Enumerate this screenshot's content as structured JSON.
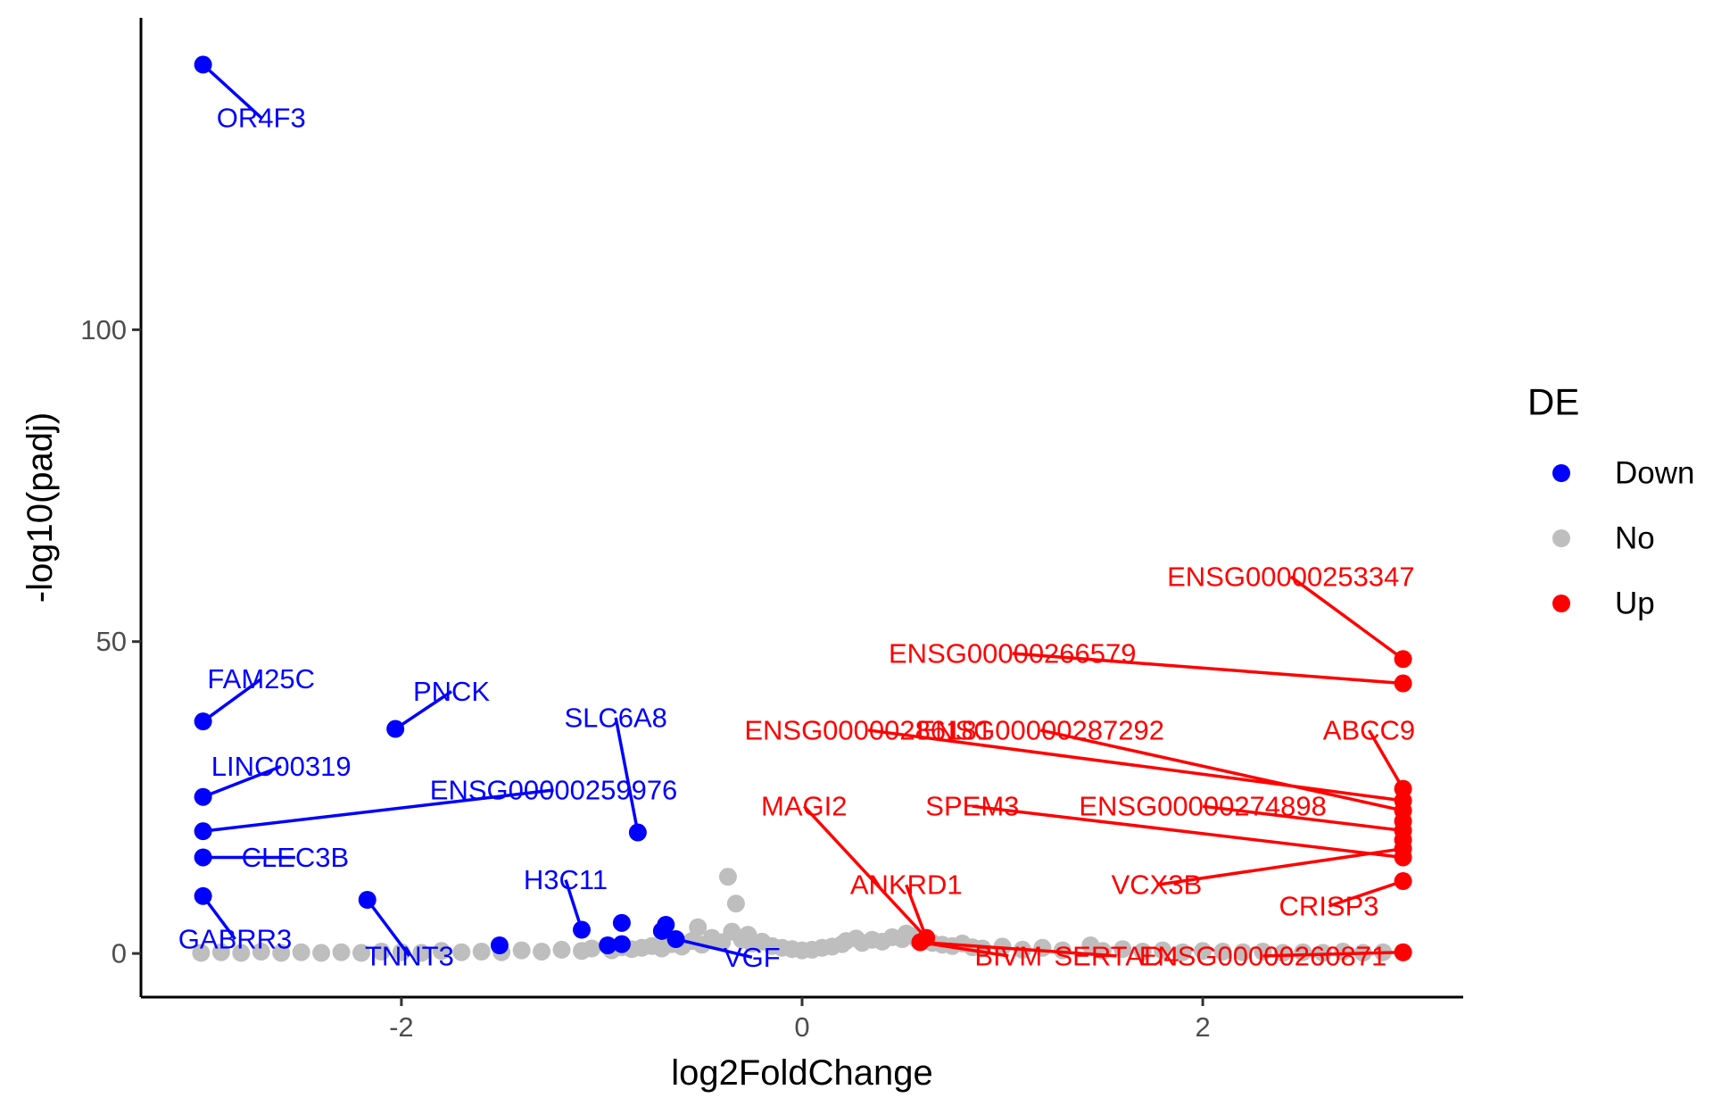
{
  "chart_data": {
    "type": "scatter",
    "title": "",
    "xlabel": "log2FoldChange",
    "ylabel": "-log10(padj)",
    "xlim": [
      -3.3,
      3.3
    ],
    "ylim": [
      -7,
      150
    ],
    "x_ticks": [
      -2,
      0,
      2
    ],
    "x_tick_labels": [
      "-2",
      "0",
      "2"
    ],
    "y_ticks": [
      0,
      50,
      100
    ],
    "y_tick_labels": [
      "0",
      "50",
      "100"
    ],
    "grid": false,
    "legend": {
      "title": "DE",
      "placement": "right",
      "entries": [
        {
          "label": "Down",
          "color": "#0000ff"
        },
        {
          "label": "No",
          "color": "#bebebe"
        },
        {
          "label": "Up",
          "color": "#ff0000"
        }
      ]
    },
    "colors": {
      "Down": "#0000ff",
      "No": "#bebebe",
      "Up": "#ff0000"
    },
    "series": [
      {
        "name": "No",
        "points": [
          [
            -3.0,
            0.1
          ],
          [
            -2.9,
            0.2
          ],
          [
            -2.8,
            0.1
          ],
          [
            -2.7,
            0.3
          ],
          [
            -2.6,
            0.1
          ],
          [
            -2.5,
            0.2
          ],
          [
            -2.4,
            0.1
          ],
          [
            -2.3,
            0.2
          ],
          [
            -2.2,
            0.1
          ],
          [
            -2.1,
            0.3
          ],
          [
            -2.0,
            0.2
          ],
          [
            -1.9,
            0.1
          ],
          [
            -1.8,
            0.4
          ],
          [
            -1.7,
            0.2
          ],
          [
            -1.6,
            0.3
          ],
          [
            -1.5,
            0.2
          ],
          [
            -1.4,
            0.5
          ],
          [
            -1.3,
            0.3
          ],
          [
            -1.2,
            0.6
          ],
          [
            -1.1,
            0.4
          ],
          [
            -1.05,
            0.8
          ],
          [
            -0.95,
            0.5
          ],
          [
            -0.9,
            1.0
          ],
          [
            -0.85,
            0.7
          ],
          [
            -0.8,
            0.9
          ],
          [
            -0.75,
            1.2
          ],
          [
            -0.7,
            0.8
          ],
          [
            -0.65,
            1.5
          ],
          [
            -0.6,
            1.1
          ],
          [
            -0.55,
            2.0
          ],
          [
            -0.52,
            4.2
          ],
          [
            -0.5,
            1.4
          ],
          [
            -0.45,
            2.5
          ],
          [
            -0.4,
            1.8
          ],
          [
            -0.37,
            12.3
          ],
          [
            -0.35,
            3.5
          ],
          [
            -0.33,
            8.0
          ],
          [
            -0.3,
            2.2
          ],
          [
            -0.27,
            3.0
          ],
          [
            -0.25,
            1.6
          ],
          [
            -0.2,
            1.9
          ],
          [
            -0.15,
            1.2
          ],
          [
            -0.1,
            0.9
          ],
          [
            -0.05,
            0.7
          ],
          [
            0.0,
            0.5
          ],
          [
            0.05,
            0.6
          ],
          [
            0.1,
            0.9
          ],
          [
            0.15,
            1.1
          ],
          [
            0.2,
            1.5
          ],
          [
            0.22,
            2.0
          ],
          [
            0.27,
            2.4
          ],
          [
            0.3,
            1.7
          ],
          [
            0.35,
            2.2
          ],
          [
            0.4,
            1.9
          ],
          [
            0.45,
            2.6
          ],
          [
            0.5,
            2.3
          ],
          [
            0.52,
            3.2
          ],
          [
            0.55,
            2.8
          ],
          [
            0.58,
            2.0
          ],
          [
            0.65,
            1.7
          ],
          [
            0.7,
            1.4
          ],
          [
            0.75,
            1.2
          ],
          [
            0.8,
            1.6
          ],
          [
            0.85,
            1.0
          ],
          [
            0.9,
            0.8
          ],
          [
            1.0,
            1.1
          ],
          [
            1.1,
            0.6
          ],
          [
            1.2,
            0.9
          ],
          [
            1.3,
            0.5
          ],
          [
            1.44,
            1.3
          ],
          [
            1.5,
            0.4
          ],
          [
            1.6,
            0.7
          ],
          [
            1.7,
            0.3
          ],
          [
            1.8,
            0.5
          ],
          [
            1.9,
            0.2
          ],
          [
            2.0,
            0.4
          ],
          [
            2.1,
            0.3
          ],
          [
            2.2,
            0.2
          ],
          [
            2.3,
            0.3
          ],
          [
            2.4,
            0.1
          ],
          [
            2.5,
            0.2
          ],
          [
            2.6,
            0.1
          ],
          [
            2.7,
            0.3
          ],
          [
            2.8,
            0.1
          ],
          [
            2.9,
            0.2
          ],
          [
            3.0,
            0.1
          ]
        ]
      },
      {
        "name": "Down",
        "points": [
          [
            -2.99,
            142.5
          ],
          [
            -2.99,
            37.2
          ],
          [
            -2.99,
            25.1
          ],
          [
            -2.99,
            19.6
          ],
          [
            -2.99,
            15.4
          ],
          [
            -2.99,
            9.2
          ],
          [
            -2.03,
            36.0
          ],
          [
            -0.82,
            19.4
          ],
          [
            -2.17,
            8.6
          ],
          [
            -1.1,
            3.8
          ],
          [
            -0.9,
            4.9
          ],
          [
            -0.68,
            4.6
          ],
          [
            -0.7,
            3.6
          ],
          [
            -0.9,
            1.5
          ],
          [
            -0.97,
            1.3
          ],
          [
            -1.51,
            1.3
          ],
          [
            -0.63,
            2.3
          ]
        ]
      },
      {
        "name": "Up",
        "points": [
          [
            3.0,
            47.2
          ],
          [
            3.0,
            43.3
          ],
          [
            3.0,
            26.4
          ],
          [
            3.0,
            24.5
          ],
          [
            3.0,
            22.9
          ],
          [
            3.0,
            21.2
          ],
          [
            3.0,
            19.7
          ],
          [
            3.0,
            18.2
          ],
          [
            3.0,
            16.8
          ],
          [
            3.0,
            15.4
          ],
          [
            3.0,
            11.6
          ],
          [
            3.0,
            0.2
          ],
          [
            0.62,
            2.5
          ],
          [
            0.59,
            1.8
          ]
        ]
      }
    ],
    "labels": [
      {
        "text": "OR4F3",
        "group": "Down",
        "point": [
          -2.99,
          142.5
        ],
        "at": [
          -2.7,
          134.0
        ]
      },
      {
        "text": "FAM25C",
        "group": "Down",
        "point": [
          -2.99,
          37.2
        ],
        "at": [
          -2.7,
          44.0
        ]
      },
      {
        "text": "PNCK",
        "group": "Down",
        "point": [
          -2.03,
          36.0
        ],
        "at": [
          -1.75,
          42.0
        ]
      },
      {
        "text": "LINC00319",
        "group": "Down",
        "point": [
          -2.99,
          25.1
        ],
        "at": [
          -2.6,
          30.0
        ]
      },
      {
        "text": "ENSG00000259976",
        "group": "Down",
        "point": [
          -2.99,
          19.6
        ],
        "at": [
          -1.24,
          26.2
        ]
      },
      {
        "text": "SLC6A8",
        "group": "Down",
        "point": [
          -0.82,
          19.4
        ],
        "at": [
          -0.93,
          37.8
        ]
      },
      {
        "text": "CLEC3B",
        "group": "Down",
        "point": [
          -2.99,
          15.4
        ],
        "at": [
          -2.53,
          15.4
        ]
      },
      {
        "text": "H3C11",
        "group": "Down",
        "point": [
          -1.1,
          3.8
        ],
        "at": [
          -1.18,
          11.8
        ]
      },
      {
        "text": "GABRR3",
        "group": "Down",
        "point": [
          -2.99,
          9.2
        ],
        "at": [
          -2.83,
          2.3
        ]
      },
      {
        "text": "TNNT3",
        "group": "Down",
        "point": [
          -2.17,
          8.6
        ],
        "at": [
          -1.96,
          -0.4
        ]
      },
      {
        "text": "VGF",
        "group": "Down",
        "point": [
          -0.63,
          2.3
        ],
        "at": [
          -0.25,
          -0.6
        ]
      },
      {
        "text": "ENSG00000253347",
        "group": "Up",
        "point": [
          3.0,
          47.2
        ],
        "at": [
          2.44,
          60.4
        ]
      },
      {
        "text": "ENSG00000266579",
        "group": "Up",
        "point": [
          3.0,
          43.3
        ],
        "at": [
          1.05,
          48.1
        ]
      },
      {
        "text": "ENSG00000286181",
        "group": "Up",
        "point": [
          3.0,
          24.5
        ],
        "at": [
          0.33,
          35.8
        ]
      },
      {
        "text": "ENSG00000287292",
        "group": "Up",
        "point": [
          3.0,
          22.9
        ],
        "at": [
          1.19,
          35.8
        ]
      },
      {
        "text": "ABCC9",
        "group": "Up",
        "point": [
          3.0,
          26.4
        ],
        "at": [
          2.83,
          35.8
        ]
      },
      {
        "text": "MAGI2",
        "group": "Up",
        "point": [
          0.62,
          2.5
        ],
        "at": [
          0.01,
          23.6
        ]
      },
      {
        "text": "SPEM3",
        "group": "Up",
        "point": [
          3.0,
          15.4
        ],
        "at": [
          0.85,
          23.6
        ]
      },
      {
        "text": "ENSG00000274898",
        "group": "Up",
        "point": [
          3.0,
          19.7
        ],
        "at": [
          2.0,
          23.6
        ]
      },
      {
        "text": "ANKRD1",
        "group": "Up",
        "point": [
          0.62,
          2.5
        ],
        "at": [
          0.52,
          11.0
        ]
      },
      {
        "text": "VCX3B",
        "group": "Up",
        "point": [
          3.0,
          16.8
        ],
        "at": [
          1.77,
          11.0
        ]
      },
      {
        "text": "CRISP3",
        "group": "Up",
        "point": [
          3.0,
          11.6
        ],
        "at": [
          2.63,
          7.6
        ]
      },
      {
        "text": "BIVM",
        "group": "Up",
        "point": [
          0.59,
          1.8
        ],
        "at": [
          1.03,
          -0.4
        ]
      },
      {
        "text": "SERTAD4",
        "group": "Up",
        "point": [
          0.59,
          1.8
        ],
        "at": [
          1.57,
          -0.4
        ]
      },
      {
        "text": "ENSG00000260871",
        "group": "Up",
        "point": [
          3.0,
          0.2
        ],
        "at": [
          2.3,
          -0.4
        ]
      }
    ]
  }
}
